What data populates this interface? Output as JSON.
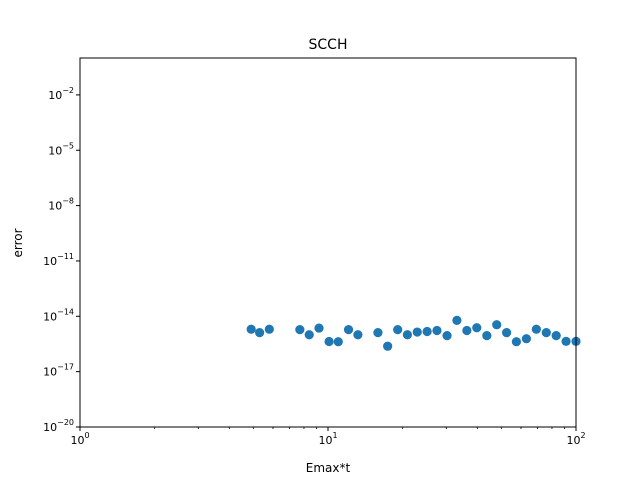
{
  "chart_data": {
    "type": "scatter",
    "title": "SCCH",
    "xlabel": "Emax*t",
    "ylabel": "error",
    "xscale": "log",
    "yscale": "log",
    "xlim": [
      1,
      100
    ],
    "ylim": [
      1e-20,
      1.0
    ],
    "grid": false,
    "color": "#1f77b4",
    "x_ticks": [
      {
        "base": "10",
        "exp": "0",
        "value": 1
      },
      {
        "base": "10",
        "exp": "1",
        "value": 10
      },
      {
        "base": "10",
        "exp": "2",
        "value": 100
      }
    ],
    "y_ticks": [
      {
        "base": "10",
        "exp": "−20",
        "value": -20
      },
      {
        "base": "10",
        "exp": "−17",
        "value": -17
      },
      {
        "base": "10",
        "exp": "−14",
        "value": -14
      },
      {
        "base": "10",
        "exp": "−11",
        "value": -11
      },
      {
        "base": "10",
        "exp": "−8",
        "value": -8
      },
      {
        "base": "10",
        "exp": "−5",
        "value": -5
      },
      {
        "base": "10",
        "exp": "−2",
        "value": -2
      }
    ],
    "points": [
      {
        "x": 4.9,
        "y": 2e-15
      },
      {
        "x": 5.3,
        "y": 1.3e-15
      },
      {
        "x": 5.8,
        "y": 2e-15
      },
      {
        "x": 7.7,
        "y": 1.9e-15
      },
      {
        "x": 8.4,
        "y": 1e-15
      },
      {
        "x": 9.2,
        "y": 2.3e-15
      },
      {
        "x": 10.1,
        "y": 4.3e-16
      },
      {
        "x": 11.0,
        "y": 4.2e-16
      },
      {
        "x": 12.1,
        "y": 1.9e-15
      },
      {
        "x": 13.2,
        "y": 1e-15
      },
      {
        "x": 15.9,
        "y": 1.3e-15
      },
      {
        "x": 17.4,
        "y": 2.4e-16
      },
      {
        "x": 19.1,
        "y": 1.9e-15
      },
      {
        "x": 20.9,
        "y": 1e-15
      },
      {
        "x": 22.9,
        "y": 1.4e-15
      },
      {
        "x": 25.1,
        "y": 1.5e-15
      },
      {
        "x": 27.5,
        "y": 1.7e-15
      },
      {
        "x": 30.2,
        "y": 9e-16
      },
      {
        "x": 33.1,
        "y": 6e-15
      },
      {
        "x": 36.3,
        "y": 1.7e-15
      },
      {
        "x": 39.8,
        "y": 2.4e-15
      },
      {
        "x": 43.7,
        "y": 9e-16
      },
      {
        "x": 47.9,
        "y": 3.5e-15
      },
      {
        "x": 52.5,
        "y": 1.3e-15
      },
      {
        "x": 57.5,
        "y": 4.2e-16
      },
      {
        "x": 63.1,
        "y": 6.1e-16
      },
      {
        "x": 69.2,
        "y": 2e-15
      },
      {
        "x": 75.9,
        "y": 1.3e-15
      },
      {
        "x": 83.2,
        "y": 9e-16
      },
      {
        "x": 91.2,
        "y": 4.4e-16
      },
      {
        "x": 100.0,
        "y": 4.4e-16
      }
    ]
  }
}
